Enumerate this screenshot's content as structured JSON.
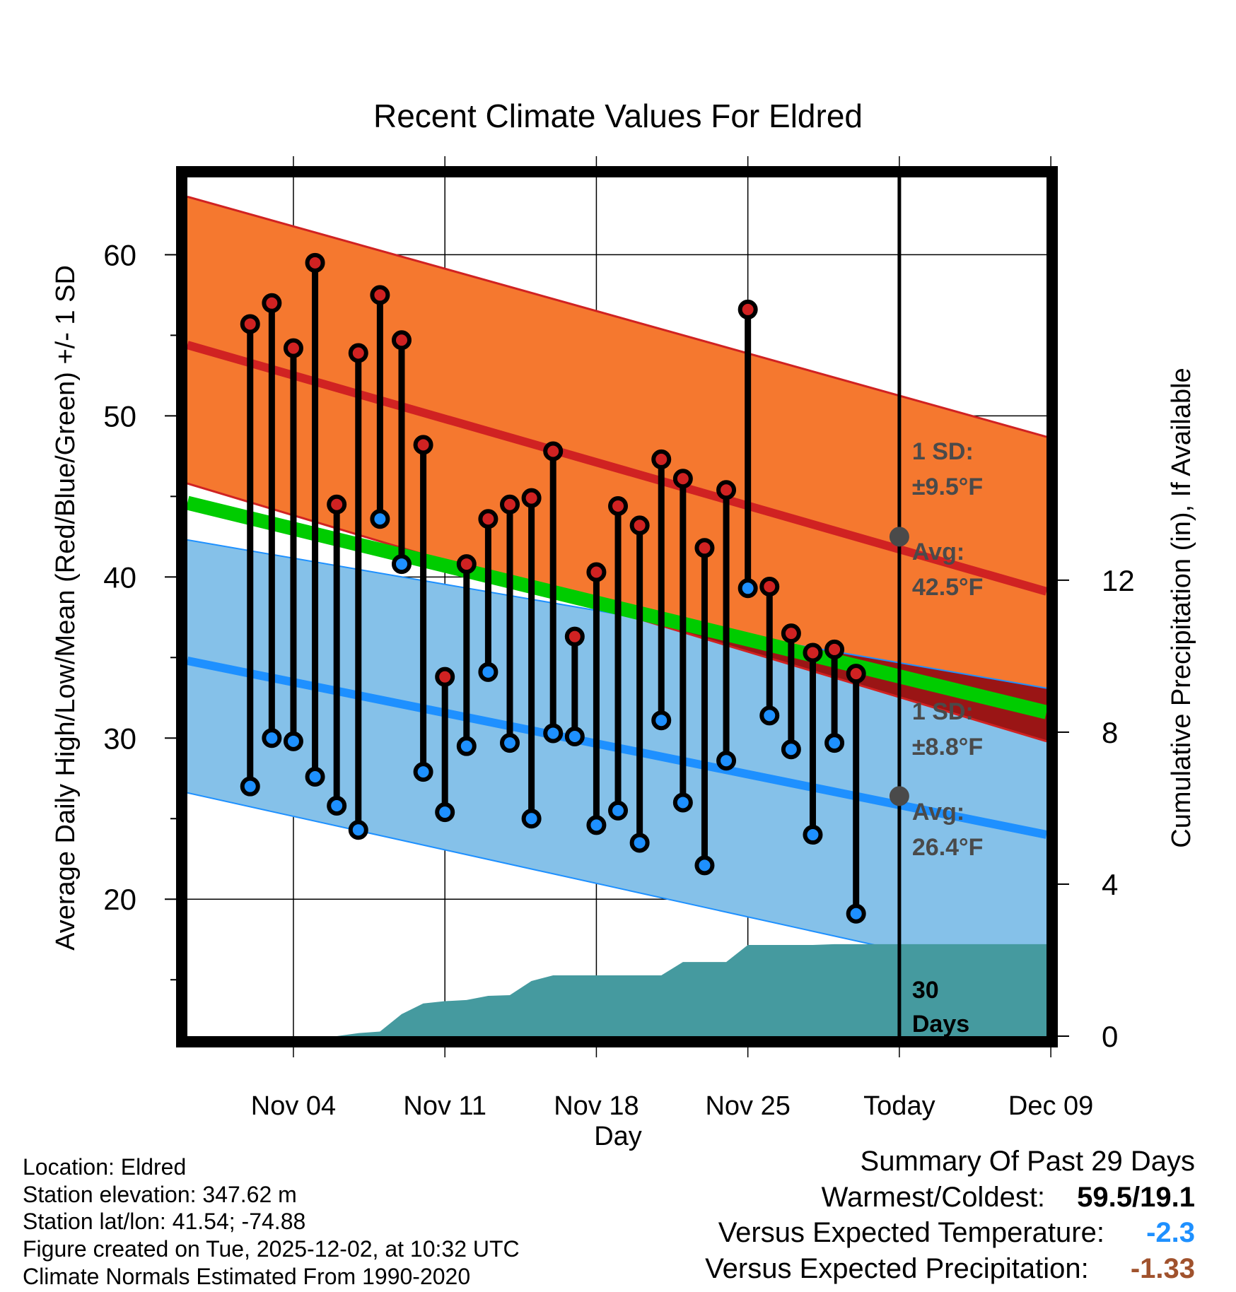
{
  "chart_data": {
    "type": "line",
    "title": "Recent Climate Values For Eldred",
    "xlabel": "Day",
    "ylabel": "Average Daily High/Low/Mean (Red/Blue/Green) +/- 1 SD",
    "y2label": "Cumulative Precipitation (in), If Available",
    "ylim": [
      11.5,
      64.8
    ],
    "y_ticks": [
      20,
      30,
      40,
      50,
      60
    ],
    "y_tick_labels": [
      "20",
      "30",
      "40",
      "50",
      "60"
    ],
    "y2lim": [
      0,
      22.6
    ],
    "y2_ticks": [
      0,
      4,
      8,
      12
    ],
    "y2_tick_labels": [
      "0",
      "4",
      "8",
      "12"
    ],
    "x_range": [
      -0.9,
      38.8
    ],
    "x_ticks": [
      4,
      11,
      18,
      25,
      32,
      39
    ],
    "x_tick_labels": [
      "Nov 04",
      "Nov 11",
      "Nov 18",
      "Nov 25",
      "Today",
      "Dec 09"
    ],
    "today_x": 32,
    "normal_high": {
      "x": [
        -0.9,
        38.8
      ],
      "avg": [
        54.4,
        39.1
      ],
      "upper": [
        63.6,
        48.7
      ],
      "lower": [
        45.8,
        29.8
      ]
    },
    "normal_low": {
      "x": [
        -0.9,
        38.8
      ],
      "avg": [
        34.8,
        24.0
      ],
      "upper": [
        42.3,
        33.1
      ],
      "lower": [
        26.6,
        14.8
      ]
    },
    "normal_mean": {
      "x": [
        -0.9,
        38.8
      ],
      "values": [
        44.6,
        31.6
      ]
    },
    "high_annotation": {
      "sd_title": "1 SD:",
      "sd_value": "±9.5°F",
      "avg_title": "Avg:",
      "avg_value": "42.5°F",
      "avg": 42.5
    },
    "low_annotation": {
      "sd_title": "1 SD:",
      "sd_value": "±8.8°F",
      "avg_title": "Avg:",
      "avg_value": "26.4°F",
      "avg": 26.4
    },
    "observed": {
      "days": [
        2,
        3,
        4,
        5,
        6,
        7,
        8,
        9,
        10,
        11,
        12,
        13,
        14,
        15,
        16,
        17,
        18,
        19,
        20,
        21,
        22,
        23,
        24,
        25,
        26,
        27,
        28,
        29,
        30
      ],
      "highs": [
        55.7,
        57.0,
        54.2,
        59.5,
        44.5,
        53.9,
        57.5,
        54.7,
        48.2,
        33.8,
        40.8,
        43.6,
        44.5,
        44.9,
        47.8,
        36.3,
        40.3,
        44.4,
        43.2,
        47.3,
        46.1,
        41.8,
        45.4,
        56.6,
        39.4,
        36.5,
        35.3,
        35.5,
        34.0
      ],
      "lows": [
        27.0,
        30.0,
        29.8,
        27.6,
        25.8,
        24.3,
        43.6,
        40.8,
        27.9,
        25.4,
        29.5,
        34.1,
        29.7,
        25.0,
        30.3,
        30.1,
        24.6,
        25.5,
        23.5,
        31.1,
        26.0,
        22.1,
        28.6,
        39.3,
        31.4,
        29.3,
        24.0,
        29.7,
        19.1
      ]
    },
    "precip": {
      "days": [
        -0.9,
        0,
        1,
        2,
        3,
        4,
        5,
        6,
        7,
        8,
        9,
        10,
        11,
        12,
        13,
        14,
        15,
        16,
        17,
        18,
        19,
        20,
        21,
        22,
        23,
        24,
        25,
        26,
        27,
        28,
        29,
        30,
        31,
        32,
        33,
        34,
        35,
        36,
        37,
        38,
        38.8
      ],
      "values": [
        0,
        0,
        0,
        0,
        0,
        0,
        0,
        0,
        0.08,
        0.12,
        0.58,
        0.86,
        0.92,
        0.95,
        1.06,
        1.08,
        1.45,
        1.6,
        1.6,
        1.6,
        1.6,
        1.6,
        1.6,
        1.95,
        1.95,
        1.95,
        2.4,
        2.4,
        2.4,
        2.4,
        2.42,
        2.42,
        2.42,
        2.42,
        2.42,
        2.42,
        2.42,
        2.42,
        2.42,
        2.42,
        2.42
      ],
      "label_line1": "30",
      "label_line2": "Days"
    },
    "colors": {
      "high_band": "#f5782f",
      "high_line": "#d02222",
      "low_band": "#85c1e9",
      "low_line": "#1e90ff",
      "mean_line": "#00cc00",
      "overlap": "#9a1515",
      "precip": "#459a9f",
      "annotation": "#4a4a4a",
      "high_marker": "#d02222",
      "low_marker": "#1e90ff",
      "below_value": "#1e90ff",
      "precip_value": "#a0522d"
    }
  },
  "footer": {
    "location": "Location: Eldred",
    "elevation": "Station elevation: 347.62 m",
    "latlon": "Station lat/lon: 41.54; -74.88",
    "created": "Figure created on Tue, 2025-12-02, at 10:32 UTC",
    "normals": "Climate Normals Estimated From 1990-2020"
  },
  "summary": {
    "heading": "Summary Of Past 29 Days",
    "warm_cold_label": "Warmest/Coldest:",
    "warm_cold_value": "59.5/19.1",
    "temp_label": "Versus Expected Temperature:",
    "temp_value": "-2.3",
    "precip_label": "Versus Expected Precipitation:",
    "precip_value": "-1.33"
  }
}
